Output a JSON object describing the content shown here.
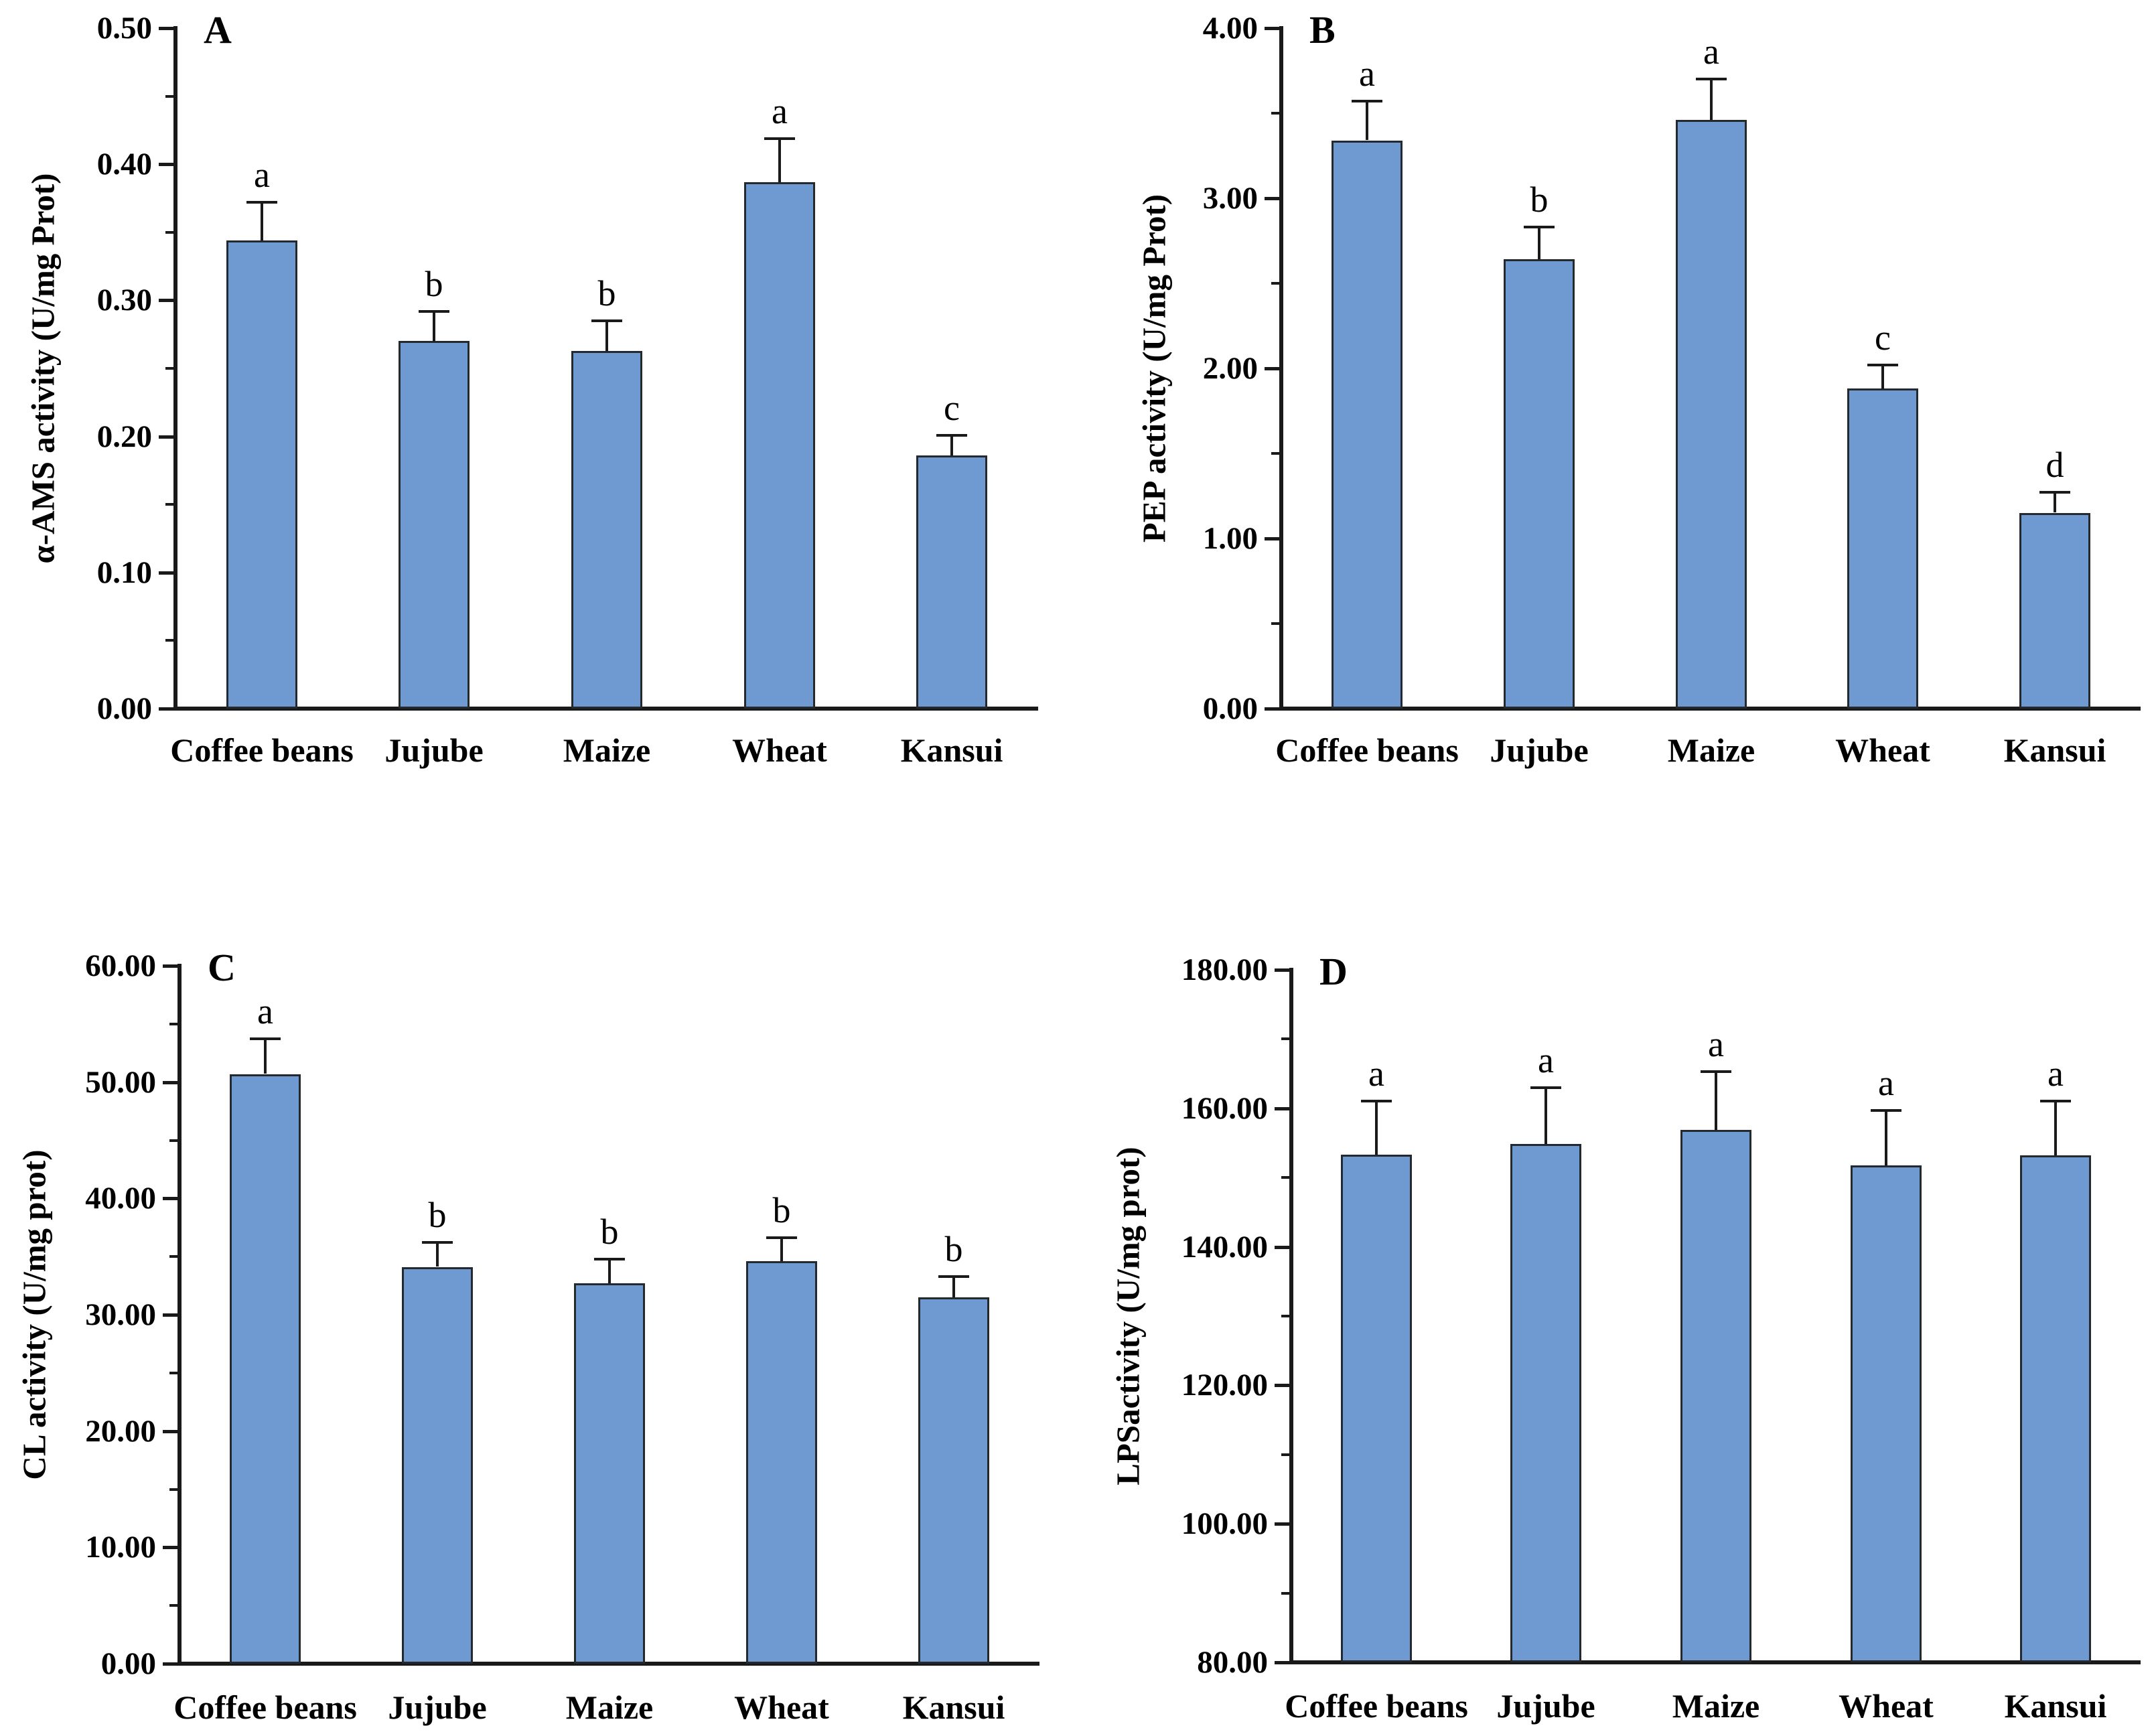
{
  "figure": {
    "background": "#ffffff",
    "colors": {
      "bar_fill": "#6f99d1",
      "bar_border": "#24292e",
      "axis": "#1a1a1a",
      "text": "#000000"
    },
    "categories": [
      "Coffee beans",
      "Jujube",
      "Maize",
      "Wheat",
      "Kansui"
    ]
  },
  "chart_data": [
    {
      "panel": "A",
      "type": "bar",
      "title": "",
      "xlabel": "",
      "ylabel": "α-AMS activity (U/mg Prot)",
      "categories": [
        "Coffee beans",
        "Jujube",
        "Maize",
        "Wheat",
        "Kansui"
      ],
      "values": [
        0.344,
        0.27,
        0.263,
        0.387,
        0.186
      ],
      "errors_plus": [
        0.028,
        0.022,
        0.022,
        0.032,
        0.015
      ],
      "sig_letters": [
        "a",
        "b",
        "b",
        "a",
        "c"
      ],
      "ylim": [
        0.0,
        0.5
      ],
      "ytick_step": 0.1,
      "ytick_labels": [
        "0.00",
        "0.10",
        "0.20",
        "0.30",
        "0.40",
        "0.50"
      ],
      "minor_ticks_between": 1,
      "grid": false,
      "legend": null
    },
    {
      "panel": "B",
      "type": "bar",
      "title": "",
      "xlabel": "",
      "ylabel": "PEP activity (U/mg Prot)",
      "categories": [
        "Coffee beans",
        "Jujube",
        "Maize",
        "Wheat",
        "Kansui"
      ],
      "values": [
        3.34,
        2.64,
        3.46,
        1.88,
        1.15
      ],
      "errors_plus": [
        0.23,
        0.19,
        0.24,
        0.14,
        0.12
      ],
      "sig_letters": [
        "a",
        "b",
        "a",
        "c",
        "d"
      ],
      "ylim": [
        0.0,
        4.0
      ],
      "ytick_step": 1.0,
      "ytick_labels": [
        "0.00",
        "1.00",
        "2.00",
        "3.00",
        "4.00"
      ],
      "minor_ticks_between": 1,
      "grid": false,
      "legend": null
    },
    {
      "panel": "C",
      "type": "bar",
      "title": "",
      "xlabel": "",
      "ylabel": "CL activity (U/mg prot)",
      "categories": [
        "Coffee beans",
        "Jujube",
        "Maize",
        "Wheat",
        "Kansui"
      ],
      "values": [
        50.7,
        34.1,
        32.7,
        34.6,
        31.5
      ],
      "errors_plus": [
        3.0,
        2.1,
        2.1,
        2.0,
        1.8
      ],
      "sig_letters": [
        "a",
        "b",
        "b",
        "b",
        "b"
      ],
      "ylim": [
        0.0,
        60.0
      ],
      "ytick_step": 10.0,
      "ytick_labels": [
        "0.00",
        "10.00",
        "20.00",
        "30.00",
        "40.00",
        "50.00",
        "60.00"
      ],
      "minor_ticks_between": 1,
      "grid": false,
      "legend": null
    },
    {
      "panel": "D",
      "type": "bar",
      "title": "",
      "xlabel": "",
      "ylabel": "LPSactivity (U/mg prot)",
      "categories": [
        "Coffee beans",
        "Jujube",
        "Maize",
        "Wheat",
        "Kansui"
      ],
      "values": [
        153.3,
        154.9,
        156.9,
        151.8,
        153.2
      ],
      "errors_plus": [
        7.7,
        8.1,
        8.4,
        7.9,
        7.8
      ],
      "sig_letters": [
        "a",
        "a",
        "a",
        "a",
        "a"
      ],
      "ylim": [
        80.0,
        180.0
      ],
      "ytick_step": 20.0,
      "ytick_labels": [
        "80.00",
        "100.00",
        "120.00",
        "140.00",
        "160.00",
        "180.00"
      ],
      "minor_ticks_between": 1,
      "grid": false,
      "legend": null
    }
  ]
}
